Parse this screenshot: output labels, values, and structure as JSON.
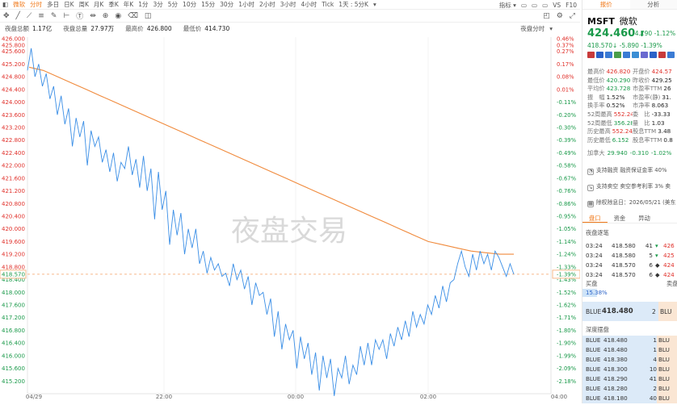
{
  "topbar": {
    "items": [
      "微软",
      "分时",
      "多日",
      "日K",
      "周K",
      "月K",
      "季K",
      "年K",
      "1分",
      "3分",
      "5分",
      "10分",
      "15分",
      "30分",
      "1小时",
      "2小时",
      "3小时",
      "4小时",
      "Tick",
      "1天 : 5分K"
    ],
    "active_index": 1,
    "right": [
      "指标 ▾",
      "▭",
      "▭",
      "▭",
      "VS",
      "F10"
    ]
  },
  "toolbar": {
    "right_label": "夜盘分时"
  },
  "stats": {
    "items": [
      {
        "label": "夜盘总额",
        "value": "1.17亿"
      },
      {
        "label": "夜盘总量",
        "value": "27.97万"
      },
      {
        "label": "最高价",
        "value": "426.800"
      },
      {
        "label": "最低价",
        "value": "414.730"
      }
    ],
    "right_label": "夜盘分时"
  },
  "chart_data": {
    "type": "line",
    "title": "",
    "watermark": "夜盘交易",
    "ylim": [
      414.7,
      426.0
    ],
    "y_ticks": [
      "426.000",
      "425.800",
      "425.600",
      "425.200",
      "424.800",
      "424.400",
      "424.000",
      "423.600",
      "423.200",
      "422.800",
      "422.400",
      "422.000",
      "421.600",
      "421.200",
      "420.800",
      "420.400",
      "420.000",
      "419.600",
      "419.200",
      "418.800",
      "418.400",
      "418.000",
      "417.600",
      "417.200",
      "416.800",
      "416.400",
      "416.000",
      "415.600",
      "415.200"
    ],
    "pct_ticks": [
      "0.46%",
      "0.37%",
      "0.27%",
      "0.17%",
      "0.08%",
      "0.01%",
      "-0.11%",
      "-0.20%",
      "-0.30%",
      "-0.39%",
      "-0.49%",
      "-0.58%",
      "-0.67%",
      "-0.76%",
      "-0.86%",
      "-0.95%",
      "-1.05%",
      "-1.14%",
      "-1.24%",
      "-1.33%",
      "-1.43%",
      "-1.52%",
      "-1.62%",
      "-1.71%",
      "-1.80%",
      "-1.90%",
      "-1.99%",
      "-2.09%",
      "-2.18%"
    ],
    "x_ticks": [
      "04/29",
      "22:00",
      "00:00",
      "02:00",
      "04:00"
    ],
    "current_price_label": "418.570",
    "current_pct_label": "-1.39%",
    "reference_price": 418.57,
    "price_series": {
      "name": "price",
      "color": "#3a8ee6",
      "values": [
        425.0,
        425.7,
        424.8,
        425.2,
        424.5,
        424.9,
        424.1,
        424.5,
        423.6,
        424.2,
        423.3,
        423.8,
        422.6,
        423.5,
        422.9,
        423.4,
        422.0,
        423.1,
        422.6,
        422.9,
        422.1,
        422.5,
        421.8,
        422.4,
        421.5,
        422.1,
        421.9,
        422.6,
        421.7,
        422.2,
        421.3,
        422.3,
        421.2,
        421.9,
        420.3,
        421.8,
        420.6,
        421.2,
        419.5,
        420.6,
        419.8,
        420.5,
        419.2,
        420.0,
        419.4,
        420.0,
        418.9,
        419.3,
        418.6,
        419.1,
        418.7,
        418.9,
        418.5,
        418.6,
        418.2,
        418.9,
        418.4,
        418.7,
        418.1,
        418.5,
        417.6,
        418.3,
        417.9,
        418.0,
        417.3,
        417.8,
        416.6,
        417.4,
        416.2,
        417.0,
        416.5,
        416.8,
        415.6,
        416.6,
        415.9,
        416.4,
        415.4,
        416.1,
        414.9,
        416.0,
        415.3,
        415.9,
        414.73,
        415.6,
        415.3,
        416.0,
        415.1,
        415.7,
        415.4,
        416.3,
        415.7,
        416.4,
        415.7,
        416.5,
        416.2,
        416.5,
        415.9,
        416.7,
        416.3,
        416.9,
        416.5,
        417.1,
        416.6,
        417.4,
        416.9,
        417.3,
        417.0,
        417.6,
        417.3,
        417.9,
        417.5,
        418.2,
        417.7,
        418.3,
        418.4,
        418.9,
        419.3,
        418.8,
        418.5,
        419.2,
        418.7,
        419.3,
        418.9,
        419.2,
        418.7,
        419.3,
        419.1,
        418.8,
        418.5,
        418.9,
        418.57
      ]
    },
    "avg_series": {
      "name": "avg",
      "color": "#f08a3c",
      "values": [
        425.1,
        425.0,
        424.8,
        424.6,
        424.4,
        424.2,
        424.0,
        423.8,
        423.6,
        423.4,
        423.2,
        423.0,
        422.8,
        422.6,
        422.4,
        422.2,
        422.0,
        421.8,
        421.6,
        421.4,
        421.2,
        421.0,
        420.8,
        420.6,
        420.4,
        420.2,
        420.0,
        419.8,
        419.6,
        419.5,
        419.4,
        419.3,
        419.25,
        419.2,
        419.2
      ]
    }
  },
  "panel": {
    "tabs": [
      "报价",
      "分析"
    ],
    "active_tab": 0,
    "symbol": "MSFT",
    "name": "微软",
    "price": "424.460",
    "arrow": "⬇",
    "change": "-4.790",
    "change_pct": "-1.12%",
    "pre_price": "418.570",
    "pre_arrow": "↓",
    "pre_change": "-5.890",
    "pre_pct": "-1.39%",
    "flag_colors": [
      "#c83b3b",
      "#2a62c8",
      "#3b7bd4",
      "#4a9e4a",
      "#3a7bd4",
      "#3b8ed4",
      "#6a6ad0",
      "#2a62c8",
      "#c83b3b",
      "#3b7bd4"
    ],
    "kv": [
      [
        {
          "k": "最高价",
          "v": "426.820",
          "cls": "red"
        },
        {
          "k": "开盘价",
          "v": "424.57",
          "cls": "red"
        }
      ],
      [
        {
          "k": "最低价",
          "v": "420.290",
          "cls": "grn"
        },
        {
          "k": "昨收价",
          "v": "429.25",
          "cls": ""
        }
      ],
      [
        {
          "k": "平均价",
          "v": "423.728",
          "cls": "grn"
        },
        {
          "k": "市盈率TTM",
          "v": "26",
          "cls": ""
        }
      ],
      [
        {
          "k": "振　幅",
          "v": "1.52%",
          "cls": ""
        },
        {
          "k": "市盈率(静)",
          "v": "31.",
          "cls": ""
        }
      ],
      [
        {
          "k": "换手率",
          "v": "0.52%",
          "cls": ""
        },
        {
          "k": "市净率",
          "v": "8.063",
          "cls": ""
        }
      ],
      [
        {
          "k": "52周最高",
          "v": "552.242",
          "cls": "red"
        },
        {
          "k": "委　比",
          "v": "-33.33",
          "cls": ""
        }
      ],
      [
        {
          "k": "52周最低",
          "v": "356.280",
          "cls": "grn"
        },
        {
          "k": "量　比",
          "v": "1.03",
          "cls": ""
        }
      ],
      [
        {
          "k": "历史最高",
          "v": "552.242",
          "cls": "red"
        },
        {
          "k": "股息TTM",
          "v": "3.48",
          "cls": ""
        }
      ],
      [
        {
          "k": "历史最低",
          "v": "6.152",
          "cls": "grn"
        },
        {
          "k": "股息率TTM",
          "v": "0.8",
          "cls": ""
        }
      ]
    ],
    "amp_label": "加拿大",
    "amp_vals": [
      "29.940",
      "-0.310",
      "-1.02%"
    ],
    "notes": [
      "支持融资 融资保证金率 40%",
      "支持卖空 卖空参考利率 3% 卖",
      "除权除息日：2026/05/21 (美东"
    ],
    "tabs2": [
      "盘口",
      "资金",
      "异动"
    ],
    "tape_title": "夜盘逐笔",
    "trades": [
      {
        "time": "03:24",
        "price": "418.580",
        "vol": "41",
        "dir": "▾",
        "side": "426"
      },
      {
        "time": "03:24",
        "price": "418.580",
        "vol": "5",
        "dir": "▾",
        "side": "425"
      },
      {
        "time": "03:24",
        "price": "418.570",
        "vol": "6",
        "dir": "◆",
        "side": "424"
      },
      {
        "time": "03:24",
        "price": "418.570",
        "vol": "6",
        "dir": "◆",
        "side": "424"
      }
    ],
    "buy_label": "买盘",
    "sell_label": "卖盘",
    "buy_pct": "15.38%",
    "buy_pct_value": 0.1538,
    "bid_top": {
      "ex": "BLUE",
      "price": "418.480",
      "vol": "2",
      "side": "BLU"
    },
    "depth_title": "深度摆盘",
    "depth": [
      {
        "ex": "BLUE",
        "price": "418.480",
        "vol": "1",
        "side": "BLU"
      },
      {
        "ex": "BLUE",
        "price": "418.480",
        "vol": "1",
        "side": "BLU"
      },
      {
        "ex": "BLUE",
        "price": "418.380",
        "vol": "4",
        "side": "BLU"
      },
      {
        "ex": "BLUE",
        "price": "418.300",
        "vol": "10",
        "side": "BLU"
      },
      {
        "ex": "BLUE",
        "price": "418.290",
        "vol": "41",
        "side": "BLU"
      },
      {
        "ex": "BLUE",
        "price": "418.280",
        "vol": "2",
        "side": "BLU"
      },
      {
        "ex": "BLUE",
        "price": "418.180",
        "vol": "40",
        "side": "BLU"
      }
    ]
  }
}
